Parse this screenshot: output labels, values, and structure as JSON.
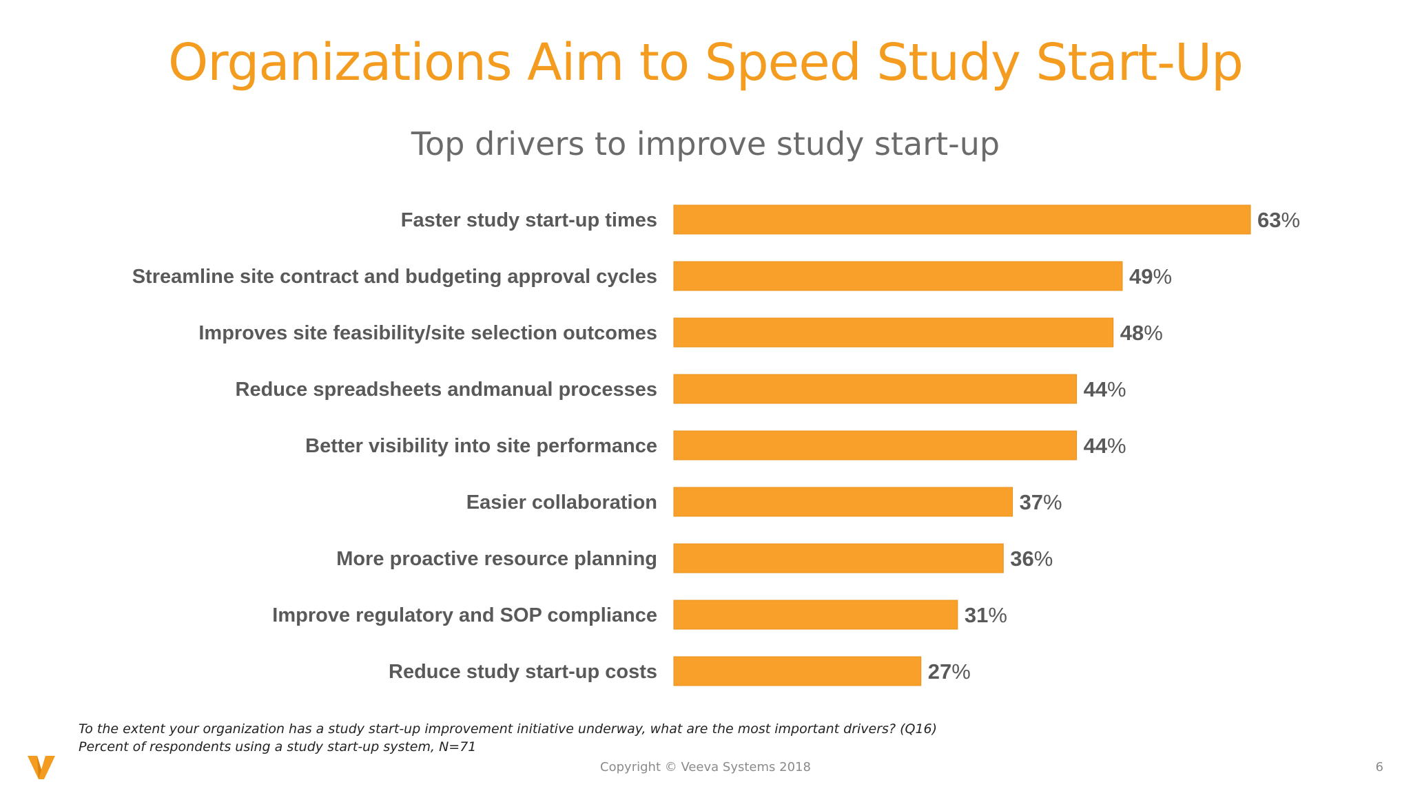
{
  "slide": {
    "title": "Organizations Aim to Speed Study Start-Up",
    "footnote_line1": "To the extent your organization has a study start-up improvement initiative underway, what are the most important drivers? (Q16)",
    "footnote_line2": "Percent of respondents using a study start-up system, N=71",
    "copyright": "Copyright © Veeva Systems 2018",
    "page_number": "6"
  },
  "logo": {
    "icon": "veeva-v-logo-icon",
    "color": "#F39C1F"
  },
  "colors": {
    "accent": "#F39C1F",
    "bar": "#F9A02B",
    "label": "#595959"
  },
  "chart_data": {
    "type": "bar",
    "orientation": "horizontal",
    "title": "Top drivers to improve study start-up",
    "xlabel": "",
    "ylabel": "",
    "unit": "%",
    "xlim": [
      0,
      63
    ],
    "grid": false,
    "legend": "none",
    "categories": [
      "Faster study start-up times",
      "Streamline site contract and budgeting approval cycles",
      "Improves site feasibility/site selection outcomes",
      "Reduce spreadsheets andmanual processes",
      "Better visibility into site performance",
      "Easier collaboration",
      "More proactive resource planning",
      "Improve regulatory and SOP compliance",
      "Reduce study start-up costs"
    ],
    "values": [
      63,
      49,
      48,
      44,
      44,
      37,
      36,
      31,
      27
    ]
  }
}
